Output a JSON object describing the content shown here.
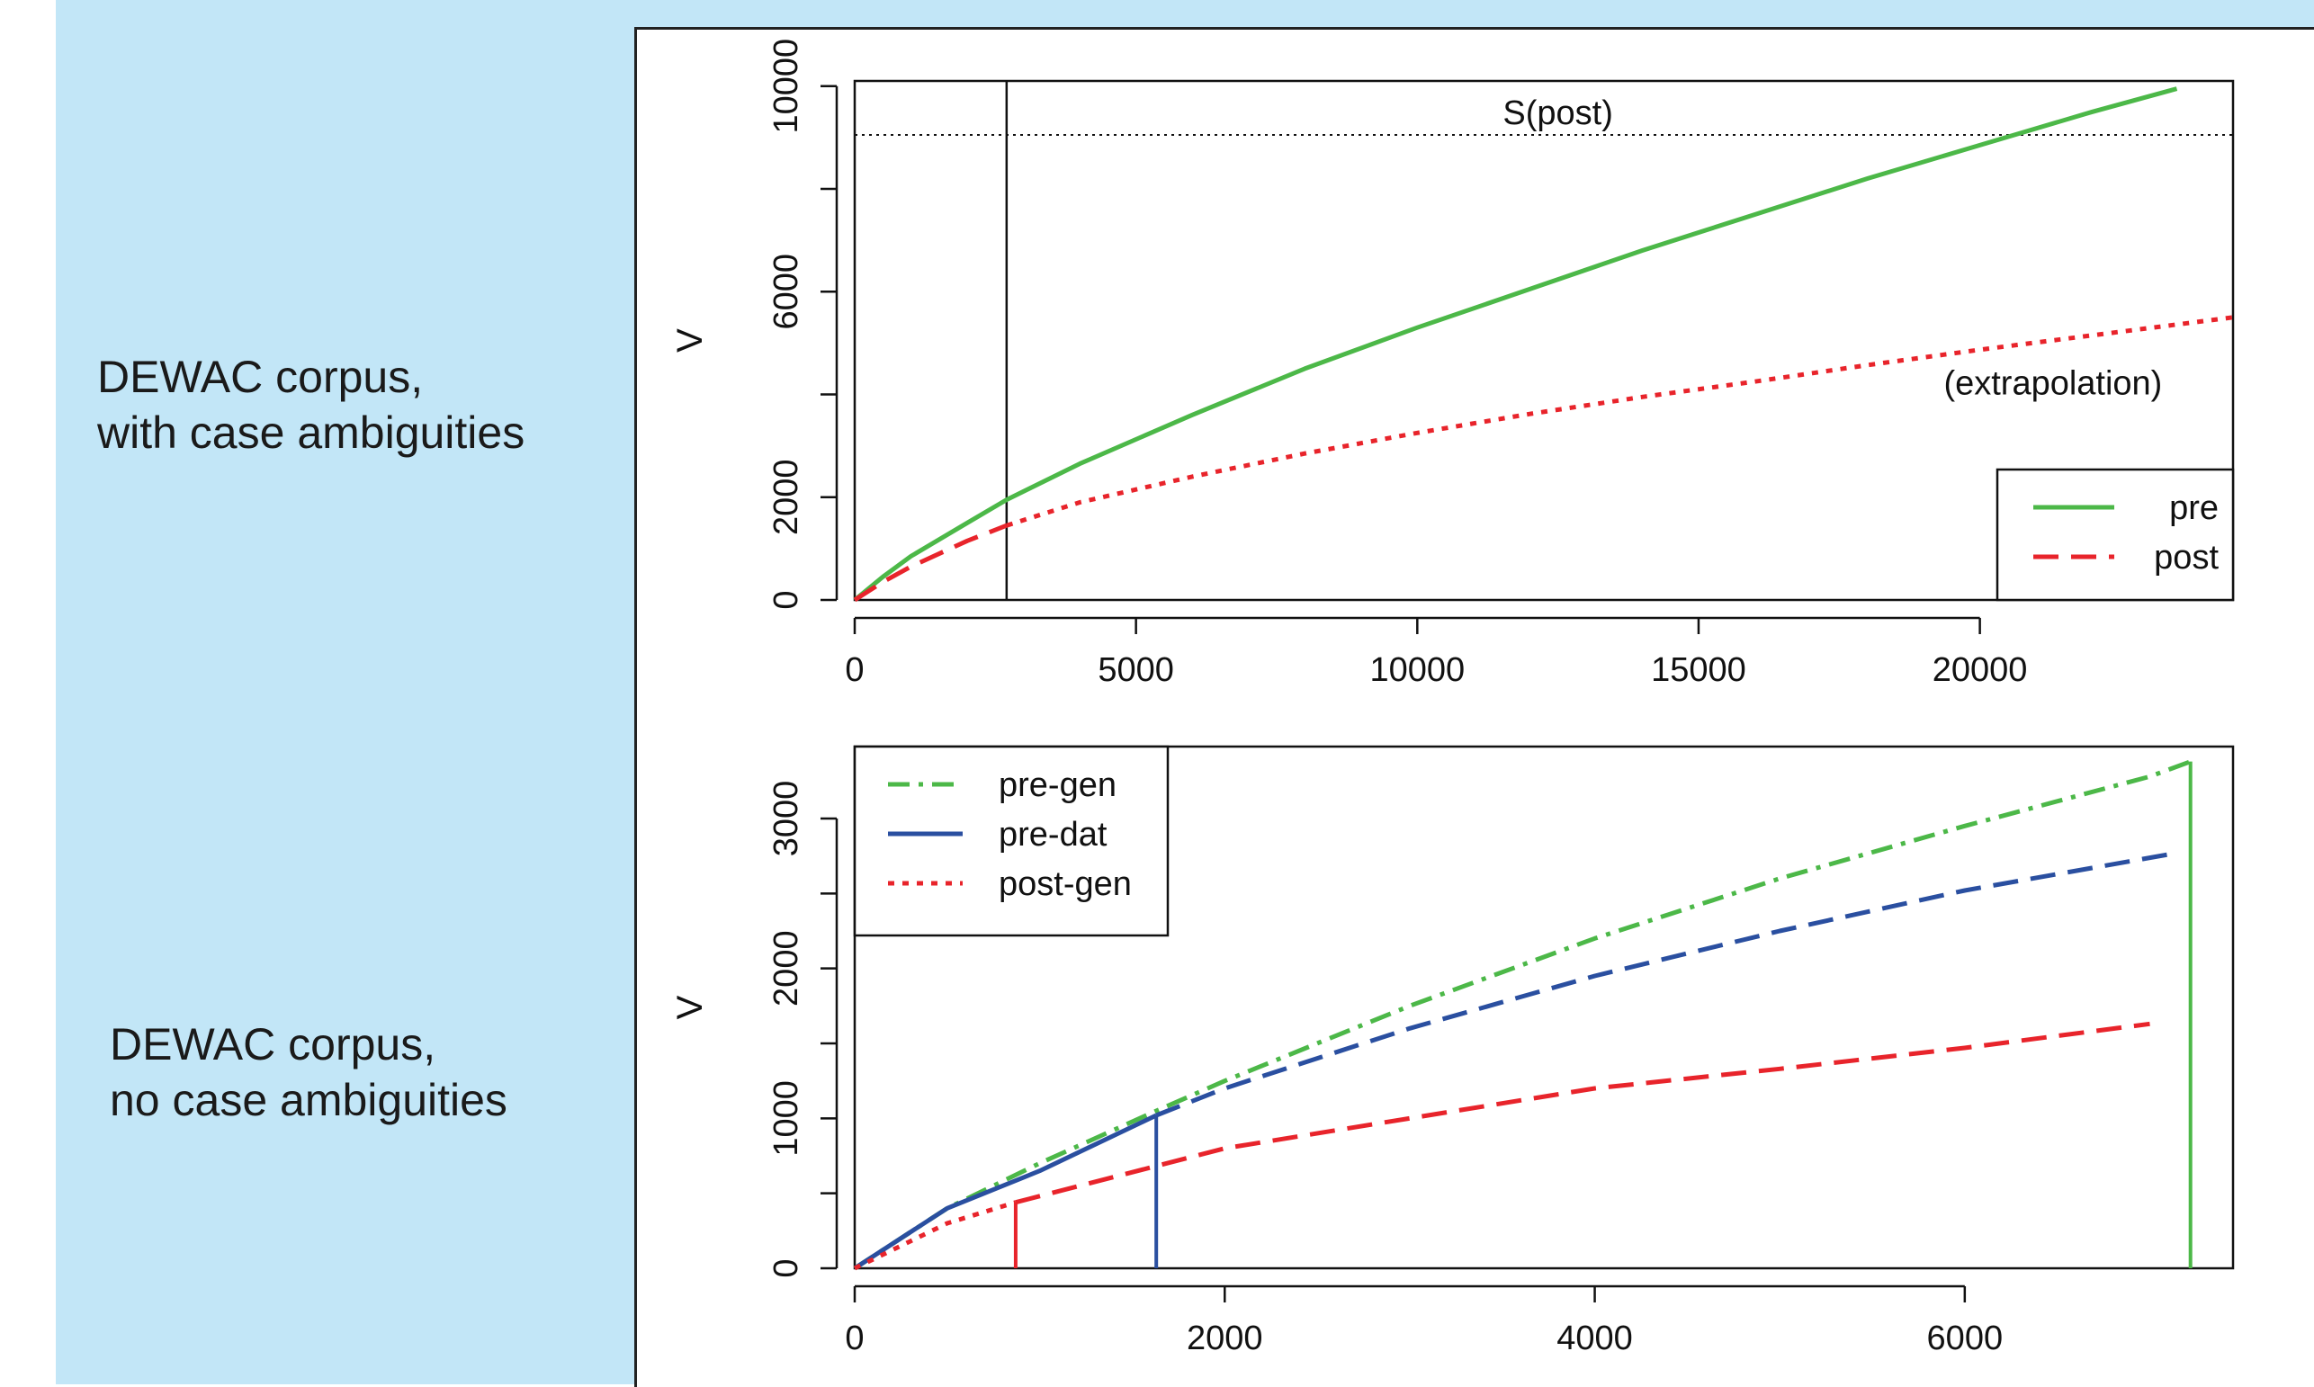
{
  "rows": [
    {
      "label_lines": [
        "DEWAC corpus,",
        "with case ambiguities"
      ]
    },
    {
      "label_lines": [
        "DEWAC corpus,",
        "no case ambiguities"
      ]
    }
  ],
  "colors": {
    "green": "#4cb848",
    "red": "#e8242b",
    "blue": "#2a4fa0",
    "background": "#c2e6f7"
  },
  "chart_data": [
    {
      "type": "line",
      "ylabel": "V",
      "xlabel": "",
      "xlim": [
        0,
        24500
      ],
      "ylim": [
        0,
        10100
      ],
      "x_ticks": [
        0,
        5000,
        10000,
        15000,
        20000
      ],
      "x_tick_labels": [
        "0",
        "5000",
        "10000",
        "15000",
        "20000"
      ],
      "y_ticks": [
        0,
        2000,
        4000,
        6000,
        8000,
        10000
      ],
      "y_tick_labels": [
        "0",
        "2000",
        "",
        "6000",
        "",
        "10000"
      ],
      "hline": {
        "y": 9050,
        "label": "S(post)",
        "label_x": 12500
      },
      "vline": {
        "x": 2700
      },
      "annotation": {
        "text": "(extrapolation)",
        "x": 21300,
        "y": 4000
      },
      "legend": {
        "position": "bottom-right",
        "entries": [
          "pre",
          "post"
        ]
      },
      "series": [
        {
          "name": "pre",
          "color": "#4cb848",
          "dash": "solid",
          "x": [
            0,
            500,
            1000,
            2000,
            2700,
            4000,
            6000,
            8000,
            10000,
            12000,
            14000,
            16000,
            18000,
            20000,
            22000,
            23500
          ],
          "y": [
            0,
            450,
            850,
            1500,
            1950,
            2650,
            3600,
            4500,
            5300,
            6050,
            6800,
            7500,
            8200,
            8850,
            9500,
            9950
          ]
        },
        {
          "name": "post",
          "color": "#e8242b",
          "dash": "dashed",
          "x": [
            0,
            500,
            1000,
            2000,
            2700
          ],
          "y": [
            0,
            350,
            650,
            1150,
            1450
          ]
        },
        {
          "name": "post (extrapolation)",
          "color": "#e8242b",
          "dash": "dotted",
          "x": [
            2700,
            4000,
            6000,
            8000,
            10000,
            12000,
            14000,
            16000,
            18000,
            20000,
            22000,
            24500
          ],
          "y": [
            1450,
            1900,
            2400,
            2850,
            3250,
            3620,
            3950,
            4250,
            4570,
            4870,
            5150,
            5500
          ]
        }
      ]
    },
    {
      "type": "line",
      "ylabel": "V",
      "xlabel": "",
      "xlim": [
        0,
        7450
      ],
      "ylim": [
        0,
        3480
      ],
      "x_ticks": [
        0,
        2000,
        4000,
        6000
      ],
      "x_tick_labels": [
        "0",
        "2000",
        "4000",
        "6000"
      ],
      "y_ticks": [
        0,
        500,
        1000,
        1500,
        2000,
        2500,
        3000
      ],
      "y_tick_labels": [
        "0",
        "",
        "1000",
        "",
        "2000",
        "",
        "3000"
      ],
      "legend": {
        "position": "top-left",
        "entries": [
          "pre-gen",
          "pre-dat",
          "post-gen"
        ]
      },
      "vlines": [
        {
          "x": 870,
          "y_top": 440,
          "color": "#e8242b"
        },
        {
          "x": 1630,
          "y_top": 1020,
          "color": "#2a4fa0"
        },
        {
          "x": 7220,
          "y_top": 3380,
          "color": "#4cb848"
        }
      ],
      "series": [
        {
          "name": "pre-gen",
          "color": "#4cb848",
          "dash": "dashdot",
          "x": [
            0,
            500,
            1000,
            1630,
            2000,
            3000,
            4000,
            5000,
            6000,
            7000,
            7220
          ],
          "y": [
            0,
            400,
            700,
            1050,
            1250,
            1750,
            2200,
            2600,
            2950,
            3280,
            3380
          ]
        },
        {
          "name": "pre-dat",
          "color": "#2a4fa0",
          "dash": "solid",
          "x": [
            0,
            500,
            1000,
            1630
          ],
          "y": [
            0,
            400,
            650,
            1020
          ]
        },
        {
          "name": "pre-dat (extrapolation)",
          "color": "#2a4fa0",
          "dash": "dashed",
          "x": [
            1630,
            2000,
            3000,
            4000,
            5000,
            6000,
            7100
          ],
          "y": [
            1020,
            1200,
            1600,
            1950,
            2250,
            2520,
            2760
          ]
        },
        {
          "name": "post-gen",
          "color": "#e8242b",
          "dash": "dotted",
          "x": [
            0,
            500,
            870
          ],
          "y": [
            0,
            300,
            440
          ]
        },
        {
          "name": "post-gen (extrapolation)",
          "color": "#e8242b",
          "dash": "dashed",
          "x": [
            870,
            2000,
            3000,
            4000,
            5000,
            6000,
            7000
          ],
          "y": [
            440,
            800,
            1000,
            1200,
            1330,
            1470,
            1630
          ]
        }
      ]
    }
  ]
}
